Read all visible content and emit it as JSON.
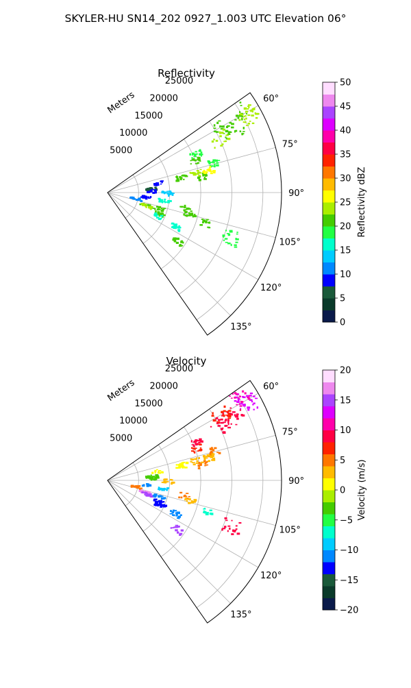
{
  "figure": {
    "suptitle": "SKYLER-HU  SN14_202  0927_1.003 UTC Elevation 06°"
  },
  "chart_data": [
    {
      "type": "polar-sector",
      "title": "Reflectivity",
      "range_label": "Meters",
      "range_max": 28000,
      "range_ticks": [
        5000,
        10000,
        15000,
        20000,
        25000
      ],
      "azimuth_min": 55,
      "azimuth_max": 145,
      "azimuth_ticks": [
        60,
        75,
        90,
        105,
        120,
        135
      ],
      "azimuth_tick_labels": [
        "60°",
        "75°",
        "90°",
        "105°",
        "120°",
        "135°"
      ],
      "grid": true,
      "colorbar": {
        "label": "Reflectivity dBZ",
        "min": 0,
        "max": 50,
        "ticks": [
          0,
          5,
          10,
          15,
          20,
          25,
          30,
          35,
          40,
          45,
          50
        ],
        "tick_labels": [
          "0",
          "5",
          "10",
          "15",
          "20",
          "25",
          "30",
          "35",
          "40",
          "45",
          "50"
        ],
        "stops": [
          "#0a1a4a",
          "#0a3a2a",
          "#1a5a3a",
          "#0000ff",
          "#0088ff",
          "#00ccff",
          "#00ffcc",
          "#22ff44",
          "#44cc00",
          "#aaee00",
          "#ffff00",
          "#ffbb00",
          "#ff7700",
          "#ff2200",
          "#ff0044",
          "#ff00aa",
          "#dd00ff",
          "#aa44ff",
          "#ee88ee",
          "#ffddff"
        ]
      },
      "echoes": [
        {
          "az": 59,
          "r": 25500,
          "value": 23
        },
        {
          "az": 58,
          "r": 25000,
          "value": 21
        },
        {
          "az": 61,
          "r": 25800,
          "value": 24
        },
        {
          "az": 62,
          "r": 21500,
          "value": 22
        },
        {
          "az": 63,
          "r": 22800,
          "value": 21
        },
        {
          "az": 60,
          "r": 21000,
          "value": 20
        },
        {
          "az": 64,
          "r": 20000,
          "value": 23
        },
        {
          "az": 66,
          "r": 15500,
          "value": 18
        },
        {
          "az": 70,
          "r": 15000,
          "value": 21
        },
        {
          "az": 74,
          "r": 17500,
          "value": 19
        },
        {
          "az": 77,
          "r": 14500,
          "value": 24
        },
        {
          "az": 78,
          "r": 12000,
          "value": 22
        },
        {
          "az": 80,
          "r": 15500,
          "value": 20
        },
        {
          "az": 77,
          "r": 16500,
          "value": 27
        },
        {
          "az": 79,
          "r": 8000,
          "value": 8
        },
        {
          "az": 84,
          "r": 7000,
          "value": 6
        },
        {
          "az": 87,
          "r": 7000,
          "value": 9
        },
        {
          "az": 90,
          "r": 9500,
          "value": 14
        },
        {
          "az": 96,
          "r": 6000,
          "value": 8
        },
        {
          "az": 98,
          "r": 9000,
          "value": 16
        },
        {
          "az": 101,
          "r": 12500,
          "value": 22
        },
        {
          "az": 104,
          "r": 13500,
          "value": 20
        },
        {
          "az": 107,
          "r": 6000,
          "value": 21
        },
        {
          "az": 109,
          "r": 6500,
          "value": 24
        },
        {
          "az": 107,
          "r": 8500,
          "value": 20
        },
        {
          "az": 112,
          "r": 8800,
          "value": 22
        },
        {
          "az": 115,
          "r": 9000,
          "value": 17
        },
        {
          "az": 107,
          "r": 16500,
          "value": 20
        },
        {
          "az": 110,
          "r": 21000,
          "value": 19
        },
        {
          "az": 125,
          "r": 13500,
          "value": 20
        },
        {
          "az": 116,
          "r": 12000,
          "value": 16
        },
        {
          "az": 101,
          "r": 4500,
          "value": 12
        }
      ]
    },
    {
      "type": "polar-sector",
      "title": "Velocity",
      "range_label": "Meters",
      "range_max": 28000,
      "range_ticks": [
        5000,
        10000,
        15000,
        20000,
        25000
      ],
      "azimuth_min": 55,
      "azimuth_max": 145,
      "azimuth_ticks": [
        60,
        75,
        90,
        105,
        120,
        135
      ],
      "azimuth_tick_labels": [
        "60°",
        "75°",
        "90°",
        "105°",
        "120°",
        "135°"
      ],
      "grid": true,
      "colorbar": {
        "label": "Velocity (m/s)",
        "min": -20,
        "max": 20,
        "ticks": [
          -20,
          -15,
          -10,
          -5,
          0,
          5,
          10,
          15,
          20
        ],
        "tick_labels": [
          "−20",
          "−15",
          "−10",
          "−5",
          "0",
          "5",
          "10",
          "15",
          "20"
        ],
        "stops": [
          "#0a1a4a",
          "#0a3a2a",
          "#1a5a3a",
          "#0000ff",
          "#0088ff",
          "#00ccff",
          "#00ffcc",
          "#22ff44",
          "#44cc00",
          "#aaee00",
          "#ffff00",
          "#ffbb00",
          "#ff7700",
          "#ff2200",
          "#ff0044",
          "#ff00aa",
          "#dd00ff",
          "#aa44ff",
          "#ee88ee",
          "#ffddff"
        ]
      },
      "echoes": [
        {
          "az": 59,
          "r": 25500,
          "value": 12
        },
        {
          "az": 58,
          "r": 25200,
          "value": 11
        },
        {
          "az": 61,
          "r": 25800,
          "value": 13
        },
        {
          "az": 62,
          "r": 21500,
          "value": 8
        },
        {
          "az": 63,
          "r": 22800,
          "value": 9
        },
        {
          "az": 60,
          "r": 21000,
          "value": 7
        },
        {
          "az": 64,
          "r": 20000,
          "value": 8
        },
        {
          "az": 66,
          "r": 15500,
          "value": 9
        },
        {
          "az": 70,
          "r": 15000,
          "value": 6
        },
        {
          "az": 74,
          "r": 17500,
          "value": 5
        },
        {
          "az": 77,
          "r": 14500,
          "value": 2
        },
        {
          "az": 78,
          "r": 12000,
          "value": 1
        },
        {
          "az": 80,
          "r": 15500,
          "value": 4
        },
        {
          "az": 77,
          "r": 16500,
          "value": 2
        },
        {
          "az": 79,
          "r": 8000,
          "value": 1
        },
        {
          "az": 84,
          "r": 7000,
          "value": -4
        },
        {
          "az": 87,
          "r": 7000,
          "value": -3
        },
        {
          "az": 90,
          "r": 9500,
          "value": 3
        },
        {
          "az": 96,
          "r": 6000,
          "value": -12
        },
        {
          "az": 98,
          "r": 9000,
          "value": -10
        },
        {
          "az": 101,
          "r": 12500,
          "value": 5
        },
        {
          "az": 104,
          "r": 13500,
          "value": 3
        },
        {
          "az": 107,
          "r": 6000,
          "value": 16
        },
        {
          "az": 109,
          "r": 6500,
          "value": 15
        },
        {
          "az": 107,
          "r": 8500,
          "value": -12
        },
        {
          "az": 112,
          "r": 8800,
          "value": -13
        },
        {
          "az": 115,
          "r": 9000,
          "value": -14
        },
        {
          "az": 107,
          "r": 16500,
          "value": -7
        },
        {
          "az": 110,
          "r": 21000,
          "value": 9
        },
        {
          "az": 125,
          "r": 13500,
          "value": 15
        },
        {
          "az": 116,
          "r": 12000,
          "value": -11
        },
        {
          "az": 101,
          "r": 4500,
          "value": 4
        }
      ]
    }
  ]
}
